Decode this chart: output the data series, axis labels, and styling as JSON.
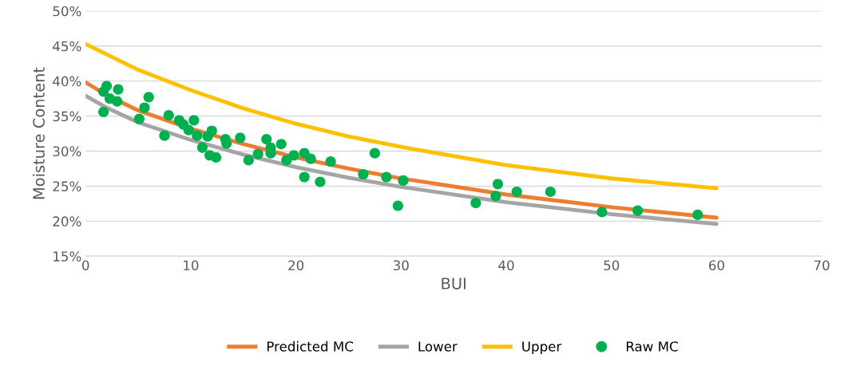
{
  "chart_data": {
    "type": "line",
    "xlabel": "BUI",
    "ylabel": "Moisture Content",
    "xlim": [
      0,
      70
    ],
    "xticks": [
      0,
      10,
      20,
      30,
      40,
      50,
      60,
      70
    ],
    "ylim": [
      15,
      50
    ],
    "yticks": [
      {
        "value": 15,
        "label": "15%"
      },
      {
        "value": 20,
        "label": "20%"
      },
      {
        "value": 25,
        "label": "25%"
      },
      {
        "value": 30,
        "label": "30%"
      },
      {
        "value": 35,
        "label": "35%"
      },
      {
        "value": 40,
        "label": "40%"
      },
      {
        "value": 45,
        "label": "45%"
      },
      {
        "value": 50,
        "label": "50%"
      }
    ],
    "grid": "y",
    "legend": "bottom",
    "series": [
      {
        "name": "Predicted MC",
        "color": "#ed7d31",
        "x": [
          0,
          2,
          5,
          10,
          15,
          20,
          25,
          30,
          40,
          50,
          60
        ],
        "values": [
          39.8,
          38.0,
          35.8,
          33.2,
          31.0,
          29.1,
          27.5,
          26.1,
          23.8,
          22.0,
          20.5
        ]
      },
      {
        "name": "Lower",
        "color": "#a5a5a5",
        "x": [
          0,
          2,
          5,
          10,
          15,
          20,
          25,
          30,
          40,
          50,
          60
        ],
        "values": [
          37.9,
          36.2,
          34.1,
          31.6,
          29.5,
          27.7,
          26.2,
          24.9,
          22.7,
          21.0,
          19.6
        ]
      },
      {
        "name": "Upper",
        "color": "#ffc000",
        "x": [
          0,
          5,
          10,
          15,
          20,
          25,
          30,
          40,
          50,
          60
        ],
        "values": [
          45.3,
          41.6,
          38.7,
          36.1,
          33.9,
          32.1,
          30.6,
          28.0,
          26.1,
          24.7
        ]
      },
      {
        "name": "Raw MC",
        "type": "scatter",
        "marker": "circle",
        "color": "#00b050",
        "x": [
          1.7,
          2.0,
          1.7,
          2.3,
          3.0,
          3.1,
          5.1,
          5.6,
          6.0,
          7.5,
          7.9,
          8.9,
          9.3,
          9.8,
          10.3,
          10.6,
          11.1,
          11.6,
          12.0,
          11.8,
          12.4,
          13.3,
          13.4,
          14.7,
          15.5,
          16.4,
          17.2,
          17.6,
          17.6,
          18.6,
          19.1,
          19.8,
          20.8,
          20.8,
          21.4,
          22.3,
          23.3,
          26.4,
          27.5,
          28.6,
          29.7,
          30.2,
          37.1,
          39.0,
          39.2,
          41.0,
          44.2,
          49.1,
          52.5,
          58.2
        ],
        "values": [
          35.6,
          39.3,
          38.5,
          37.5,
          37.1,
          38.8,
          34.6,
          36.2,
          37.7,
          32.2,
          35.1,
          34.4,
          33.8,
          33.0,
          34.4,
          32.2,
          30.5,
          32.1,
          32.9,
          29.4,
          29.1,
          31.7,
          31.1,
          31.9,
          28.7,
          29.6,
          31.7,
          30.5,
          29.7,
          31.0,
          28.7,
          29.4,
          29.7,
          26.3,
          28.9,
          25.6,
          28.5,
          26.7,
          29.7,
          26.3,
          22.2,
          25.8,
          22.6,
          23.6,
          25.3,
          24.2,
          24.2,
          21.3,
          21.5,
          20.9
        ]
      }
    ]
  }
}
